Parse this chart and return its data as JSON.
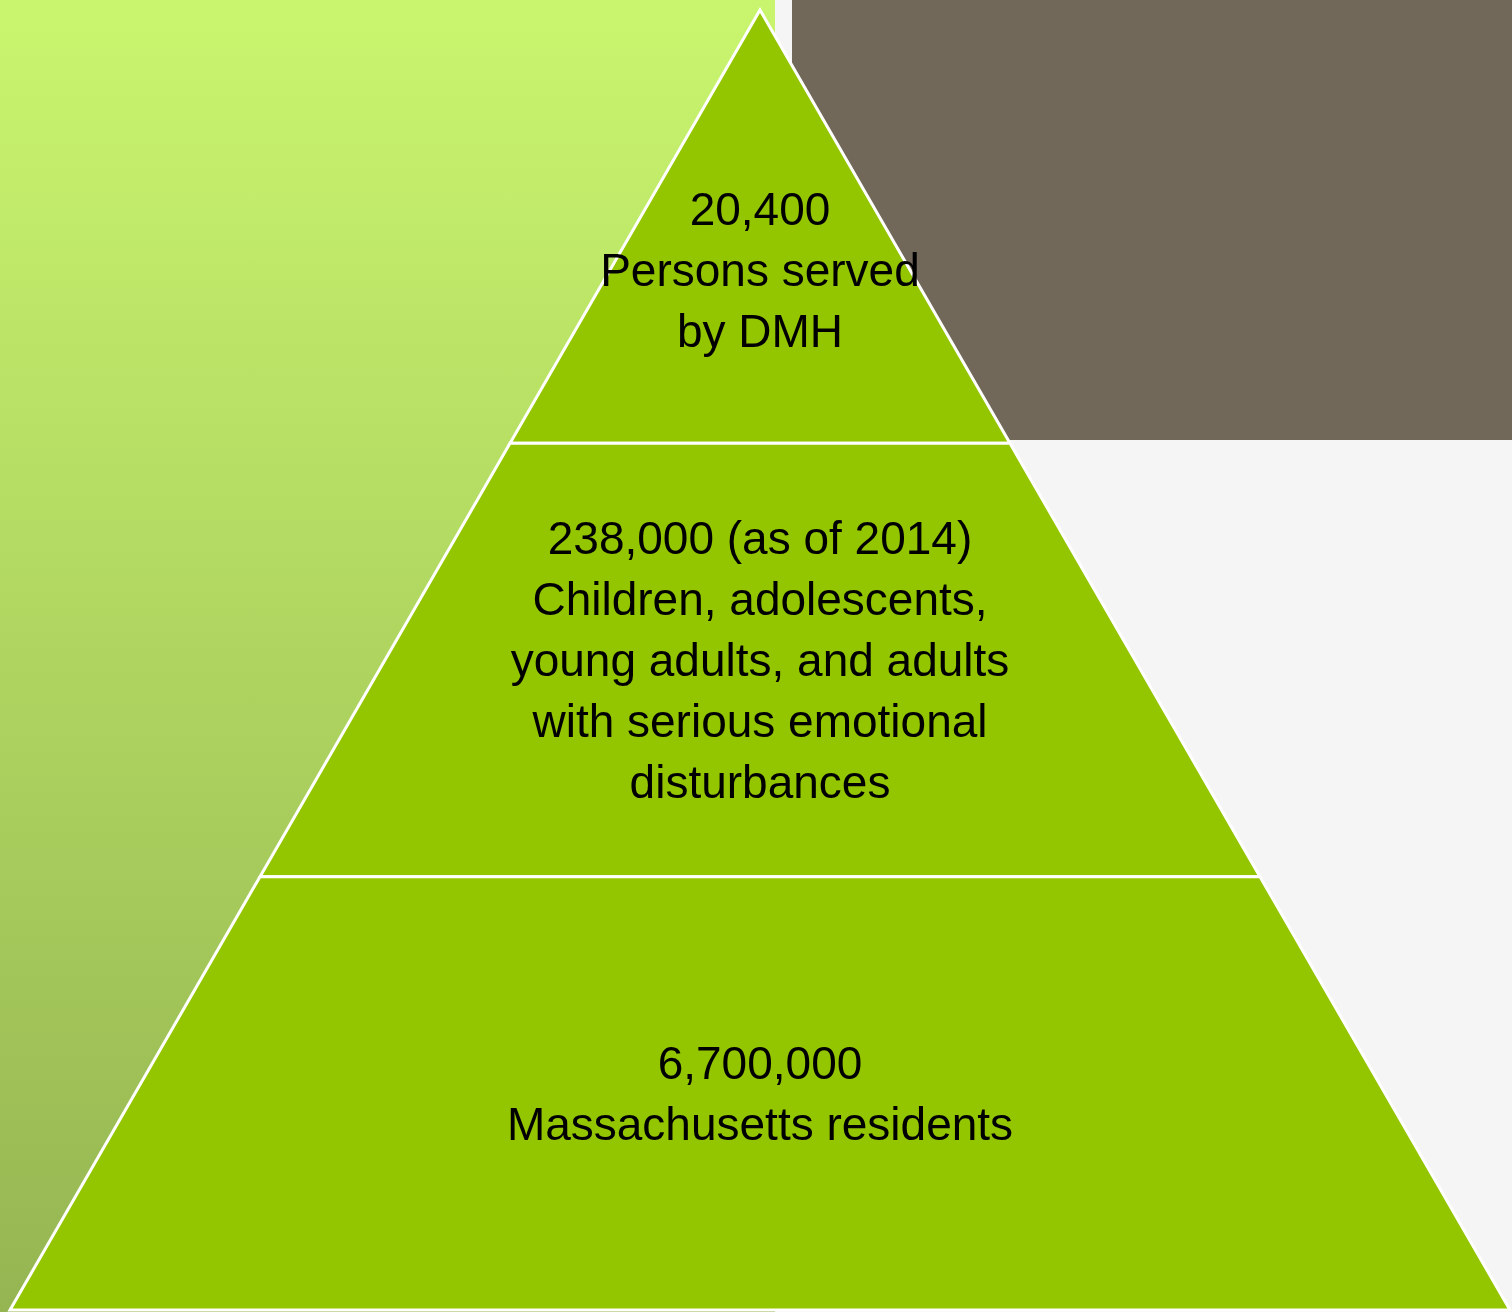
{
  "chart_data": {
    "type": "other",
    "categories": [
      "Persons served\nby DMH",
      "Children, adolescents,\nyoung adults, and adults\nwith serious emotional\ndisturbances",
      "Massachusetts residents"
    ],
    "values": [
      20400,
      238000,
      6700000
    ],
    "value_labels": [
      "20,400",
      "238,000 (as of 2014)",
      "6,700,000"
    ],
    "colors": [
      "#94c600",
      "#94c600",
      "#94c600"
    ]
  }
}
